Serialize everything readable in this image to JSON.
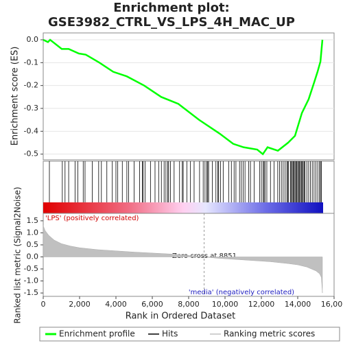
{
  "title": "Enrichment plot:",
  "subtitle": "GSE3982_CTRL_VS_LPS_4H_MAC_UP",
  "legend": [
    {
      "name": "Enrichment profile",
      "color": "#00ff00"
    },
    {
      "name": "Hits",
      "color": "#000000"
    },
    {
      "name": "Ranking metric scores",
      "color": "#c0c0c0"
    }
  ],
  "chart_data": [
    {
      "type": "line",
      "ylabel": "Enrichment score (ES)",
      "x": [
        0,
        260,
        380,
        1020,
        1400,
        1960,
        2340,
        3090,
        3850,
        4600,
        5550,
        6490,
        7430,
        8570,
        9700,
        10450,
        11020,
        11770,
        12080,
        12340,
        12910,
        13470,
        13850,
        14230,
        14600,
        14910,
        15090,
        15250,
        15358
      ],
      "series": [
        {
          "name": "Enrichment profile",
          "color": "#00ff00",
          "values": [
            0,
            -0.01,
            0,
            -0.04,
            -0.04,
            -0.06,
            -0.065,
            -0.1,
            -0.14,
            -0.16,
            -0.2,
            -0.25,
            -0.28,
            -0.35,
            -0.41,
            -0.455,
            -0.47,
            -0.48,
            -0.5,
            -0.47,
            -0.485,
            -0.45,
            -0.42,
            -0.32,
            -0.26,
            -0.185,
            -0.14,
            -0.095,
            0
          ]
        }
      ],
      "xlim": [
        0,
        16000
      ],
      "ylim": [
        -0.525,
        0.03
      ],
      "yticks": [
        {
          "value": 0,
          "label": "0.0"
        },
        -0.1,
        -0.2,
        -0.3,
        -0.4,
        -0.5
      ],
      "grid": true
    },
    {
      "type": "hits",
      "color": "#000000",
      "xlim": [
        0,
        16000
      ],
      "x": [
        340,
        1050,
        1200,
        1400,
        1750,
        1900,
        2200,
        2300,
        2700,
        3050,
        3200,
        3500,
        3800,
        4000,
        4100,
        4350,
        4600,
        4700,
        5000,
        5300,
        5450,
        5500,
        5600,
        5900,
        6150,
        6350,
        6500,
        6650,
        6750,
        6850,
        6900,
        7000,
        7200,
        7500,
        7650,
        7700,
        7900,
        8100,
        8300,
        8600,
        8800,
        8900,
        9000,
        9050,
        9100,
        9300,
        9500,
        9600,
        9650,
        9750,
        9900,
        10200,
        10350,
        10500,
        10600,
        10800,
        10900,
        11000,
        11100,
        11300,
        11400,
        11600,
        11900,
        12000,
        12100,
        12150,
        12200,
        12300,
        12500,
        12700,
        12900,
        13000,
        13100,
        13200,
        13300,
        13400,
        13450,
        13500,
        13600,
        13650,
        13700,
        13750,
        13800,
        13850,
        13900,
        13950,
        14000,
        14050,
        14100,
        14150,
        14200,
        14250,
        14300,
        14350,
        14400,
        14500,
        14600,
        14700,
        14800,
        14900,
        15000,
        15100,
        15200,
        15250,
        15300
      ]
    },
    {
      "type": "area",
      "xlabel": "Rank in Ordered Dataset",
      "ylabel": "Ranked list metric (Signal2Noise)",
      "x": [
        0,
        100,
        300,
        600,
        1000,
        1500,
        2000,
        3000,
        4000,
        5000,
        6000,
        7000,
        8000,
        8851,
        9500,
        10500,
        11500,
        12500,
        13500,
        14000,
        14500,
        15000,
        15200,
        15300,
        15358
      ],
      "series": [
        {
          "name": "Ranking metric scores",
          "color": "#c0c0c0",
          "values": [
            1.3,
            1.1,
            0.9,
            0.7,
            0.55,
            0.45,
            0.38,
            0.3,
            0.25,
            0.2,
            0.16,
            0.12,
            0.06,
            0,
            -0.05,
            -0.1,
            -0.15,
            -0.2,
            -0.28,
            -0.33,
            -0.42,
            -0.58,
            -0.7,
            -0.85,
            -1.5
          ]
        }
      ],
      "xlim": [
        0,
        16000
      ],
      "ylim": [
        -1.64,
        1.81
      ],
      "xticks": [
        0,
        {
          "value": 2000,
          "label": "2,000"
        },
        {
          "value": 4000,
          "label": "4,000"
        },
        {
          "value": 6000,
          "label": "6,000"
        },
        {
          "value": 8000,
          "label": "8,000"
        },
        {
          "value": 10000,
          "label": "10,000"
        },
        {
          "value": 12000,
          "label": "12,000"
        },
        {
          "value": 14000,
          "label": "14,000"
        },
        {
          "value": 16000,
          "label": "16,000"
        }
      ],
      "yticks": [
        1.5,
        {
          "value": 1,
          "label": "1.0"
        },
        0.5,
        {
          "value": 0,
          "label": "0.0"
        },
        -0.5,
        {
          "value": -1,
          "label": "-1.0"
        },
        -1.5
      ],
      "zero_cross": 8851,
      "annotations": [
        "'LPS' (positively correlated)",
        "Zero cross at 8851",
        "'media' (negatively correlated)"
      ]
    }
  ]
}
